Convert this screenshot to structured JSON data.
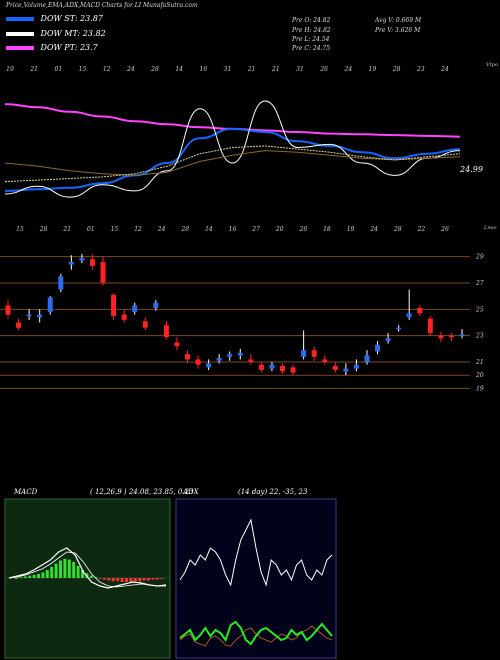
{
  "header": {
    "title": "Price,Volume,EMA,ADX,MACD Charts for LI MunafaSutra.com"
  },
  "legend": [
    {
      "label": "DOW ST: 23.87",
      "color": "#1565ff"
    },
    {
      "label": "DOW MT: 23.82",
      "color": "#ffffff"
    },
    {
      "label": "DOW PT: 23.7",
      "color": "#ff44ff"
    }
  ],
  "stats": {
    "pre_open": "Pre   O: 24.82",
    "pre_high": "Pre   H: 24.82",
    "pre_low": "Pre   L: 24.54",
    "pre_close": "Pre   C: 24.75",
    "avg_volume": "Avg V: 0.669  M",
    "pre_volume": "Pre   V: 3.626   M"
  },
  "chart_data": [
    {
      "type": "line",
      "panel": "EMA chart",
      "price_label": "24.99",
      "top_date_labels": [
        "19",
        "21",
        "01",
        "15",
        "12",
        "24",
        "28",
        "14",
        "16",
        "31",
        "21",
        "21",
        "31",
        "26",
        "24",
        "19",
        "28",
        "23",
        "24"
      ],
      "bottom_date_labels": [
        "15",
        "28",
        "21",
        "01",
        "15",
        "12",
        "24",
        "28",
        "14",
        "16",
        "27",
        "20",
        "26",
        "18",
        "19",
        "24",
        "28",
        "22",
        "26"
      ],
      "corner_top_label": "Vtpo",
      "corner_bottom_label": "Lneo",
      "series": [
        {
          "color": "#ff44ff",
          "values": [
            27.8,
            27.6,
            27.3,
            27.0,
            26.7,
            26.5,
            26.3,
            26.2,
            26.1,
            26.0,
            25.9,
            25.85,
            25.8,
            25.75,
            25.7
          ]
        },
        {
          "color": "#1565ff",
          "values": [
            22.2,
            22.3,
            22.4,
            22.7,
            23.2,
            24.0,
            25.6,
            26.2,
            26.0,
            25.4,
            25.1,
            24.7,
            24.3,
            24.6,
            24.9
          ]
        },
        {
          "color": "#ffffff",
          "values": [
            22.0,
            22.5,
            21.8,
            22.6,
            22.2,
            23.5,
            27.5,
            24.0,
            28.0,
            25.0,
            25.2,
            24.0,
            23.2,
            24.3,
            24.8
          ]
        }
      ]
    },
    {
      "type": "candlestick",
      "panel": "price chart",
      "y_tick_labels": [
        "29",
        "27",
        "25",
        "23",
        "21",
        "20",
        "19"
      ],
      "candles": [
        {
          "o": 25.3,
          "c": 24.6,
          "h": 25.7,
          "l": 24.3
        },
        {
          "o": 24.0,
          "c": 23.6,
          "h": 24.3,
          "l": 23.4
        },
        {
          "o": 24.6,
          "c": 24.6,
          "h": 25.0,
          "l": 24.2
        },
        {
          "o": 24.4,
          "c": 24.6,
          "h": 25.0,
          "l": 24.0
        },
        {
          "o": 24.8,
          "c": 25.9,
          "h": 26.0,
          "l": 24.6
        },
        {
          "o": 26.5,
          "c": 27.5,
          "h": 27.7,
          "l": 26.3
        },
        {
          "o": 28.4,
          "c": 28.6,
          "h": 29.1,
          "l": 28.0
        },
        {
          "o": 28.7,
          "c": 28.9,
          "h": 29.2,
          "l": 28.5
        },
        {
          "o": 28.8,
          "c": 28.3,
          "h": 29.2,
          "l": 28.0
        },
        {
          "o": 28.6,
          "c": 27.0,
          "h": 29.0,
          "l": 26.8
        },
        {
          "o": 26.1,
          "c": 24.5,
          "h": 26.2,
          "l": 24.2
        },
        {
          "o": 24.6,
          "c": 24.2,
          "h": 25.0,
          "l": 24.0
        },
        {
          "o": 24.8,
          "c": 25.3,
          "h": 25.5,
          "l": 24.6
        },
        {
          "o": 24.1,
          "c": 23.6,
          "h": 24.4,
          "l": 23.4
        },
        {
          "o": 25.1,
          "c": 25.5,
          "h": 25.7,
          "l": 24.9
        },
        {
          "o": 23.8,
          "c": 22.9,
          "h": 24.1,
          "l": 22.7
        },
        {
          "o": 22.5,
          "c": 22.2,
          "h": 22.9,
          "l": 21.9
        },
        {
          "o": 21.6,
          "c": 21.2,
          "h": 21.9,
          "l": 20.9
        },
        {
          "o": 21.2,
          "c": 20.8,
          "h": 21.5,
          "l": 20.5
        },
        {
          "o": 20.6,
          "c": 20.9,
          "h": 21.2,
          "l": 20.4
        },
        {
          "o": 21.1,
          "c": 21.3,
          "h": 21.6,
          "l": 20.9
        },
        {
          "o": 21.4,
          "c": 21.6,
          "h": 21.8,
          "l": 21.1
        },
        {
          "o": 21.5,
          "c": 21.7,
          "h": 22.0,
          "l": 21.2
        },
        {
          "o": 21.2,
          "c": 21.0,
          "h": 21.6,
          "l": 20.8
        },
        {
          "o": 20.8,
          "c": 20.4,
          "h": 21.0,
          "l": 20.2
        },
        {
          "o": 20.5,
          "c": 20.8,
          "h": 21.0,
          "l": 20.3
        },
        {
          "o": 20.7,
          "c": 20.3,
          "h": 20.9,
          "l": 20.1
        },
        {
          "o": 20.6,
          "c": 20.2,
          "h": 20.8,
          "l": 20.0
        },
        {
          "o": 21.4,
          "c": 21.9,
          "h": 23.4,
          "l": 21.2
        },
        {
          "o": 21.9,
          "c": 21.4,
          "h": 22.2,
          "l": 21.1
        },
        {
          "o": 21.2,
          "c": 21.0,
          "h": 21.5,
          "l": 20.8
        },
        {
          "o": 20.7,
          "c": 20.4,
          "h": 21.0,
          "l": 20.2
        },
        {
          "o": 20.3,
          "c": 20.5,
          "h": 20.9,
          "l": 20.0
        },
        {
          "o": 20.5,
          "c": 20.8,
          "h": 21.2,
          "l": 20.3
        },
        {
          "o": 21.0,
          "c": 21.5,
          "h": 21.9,
          "l": 20.8
        },
        {
          "o": 21.8,
          "c": 22.3,
          "h": 22.6,
          "l": 21.6
        },
        {
          "o": 22.6,
          "c": 22.8,
          "h": 23.2,
          "l": 22.4
        },
        {
          "o": 23.5,
          "c": 23.6,
          "h": 23.8,
          "l": 23.3
        },
        {
          "o": 24.4,
          "c": 24.7,
          "h": 26.5,
          "l": 24.2
        },
        {
          "o": 25.1,
          "c": 24.7,
          "h": 25.3,
          "l": 24.5
        },
        {
          "o": 24.3,
          "c": 23.2,
          "h": 24.5,
          "l": 23.0
        },
        {
          "o": 23.0,
          "c": 22.8,
          "h": 23.3,
          "l": 22.5
        },
        {
          "o": 23.0,
          "c": 22.9,
          "h": 23.2,
          "l": 22.6
        },
        {
          "o": 23.1,
          "c": 23.1,
          "h": 23.5,
          "l": 22.8
        }
      ]
    },
    {
      "type": "line",
      "panel": "MACD",
      "title": "MACD",
      "params": "( 12,26,9 ) 24.08, 23.85, 0.23"
    },
    {
      "type": "line",
      "panel": "ADX",
      "title": "ADX",
      "params": "(14  day) 22, -35, 23"
    }
  ]
}
